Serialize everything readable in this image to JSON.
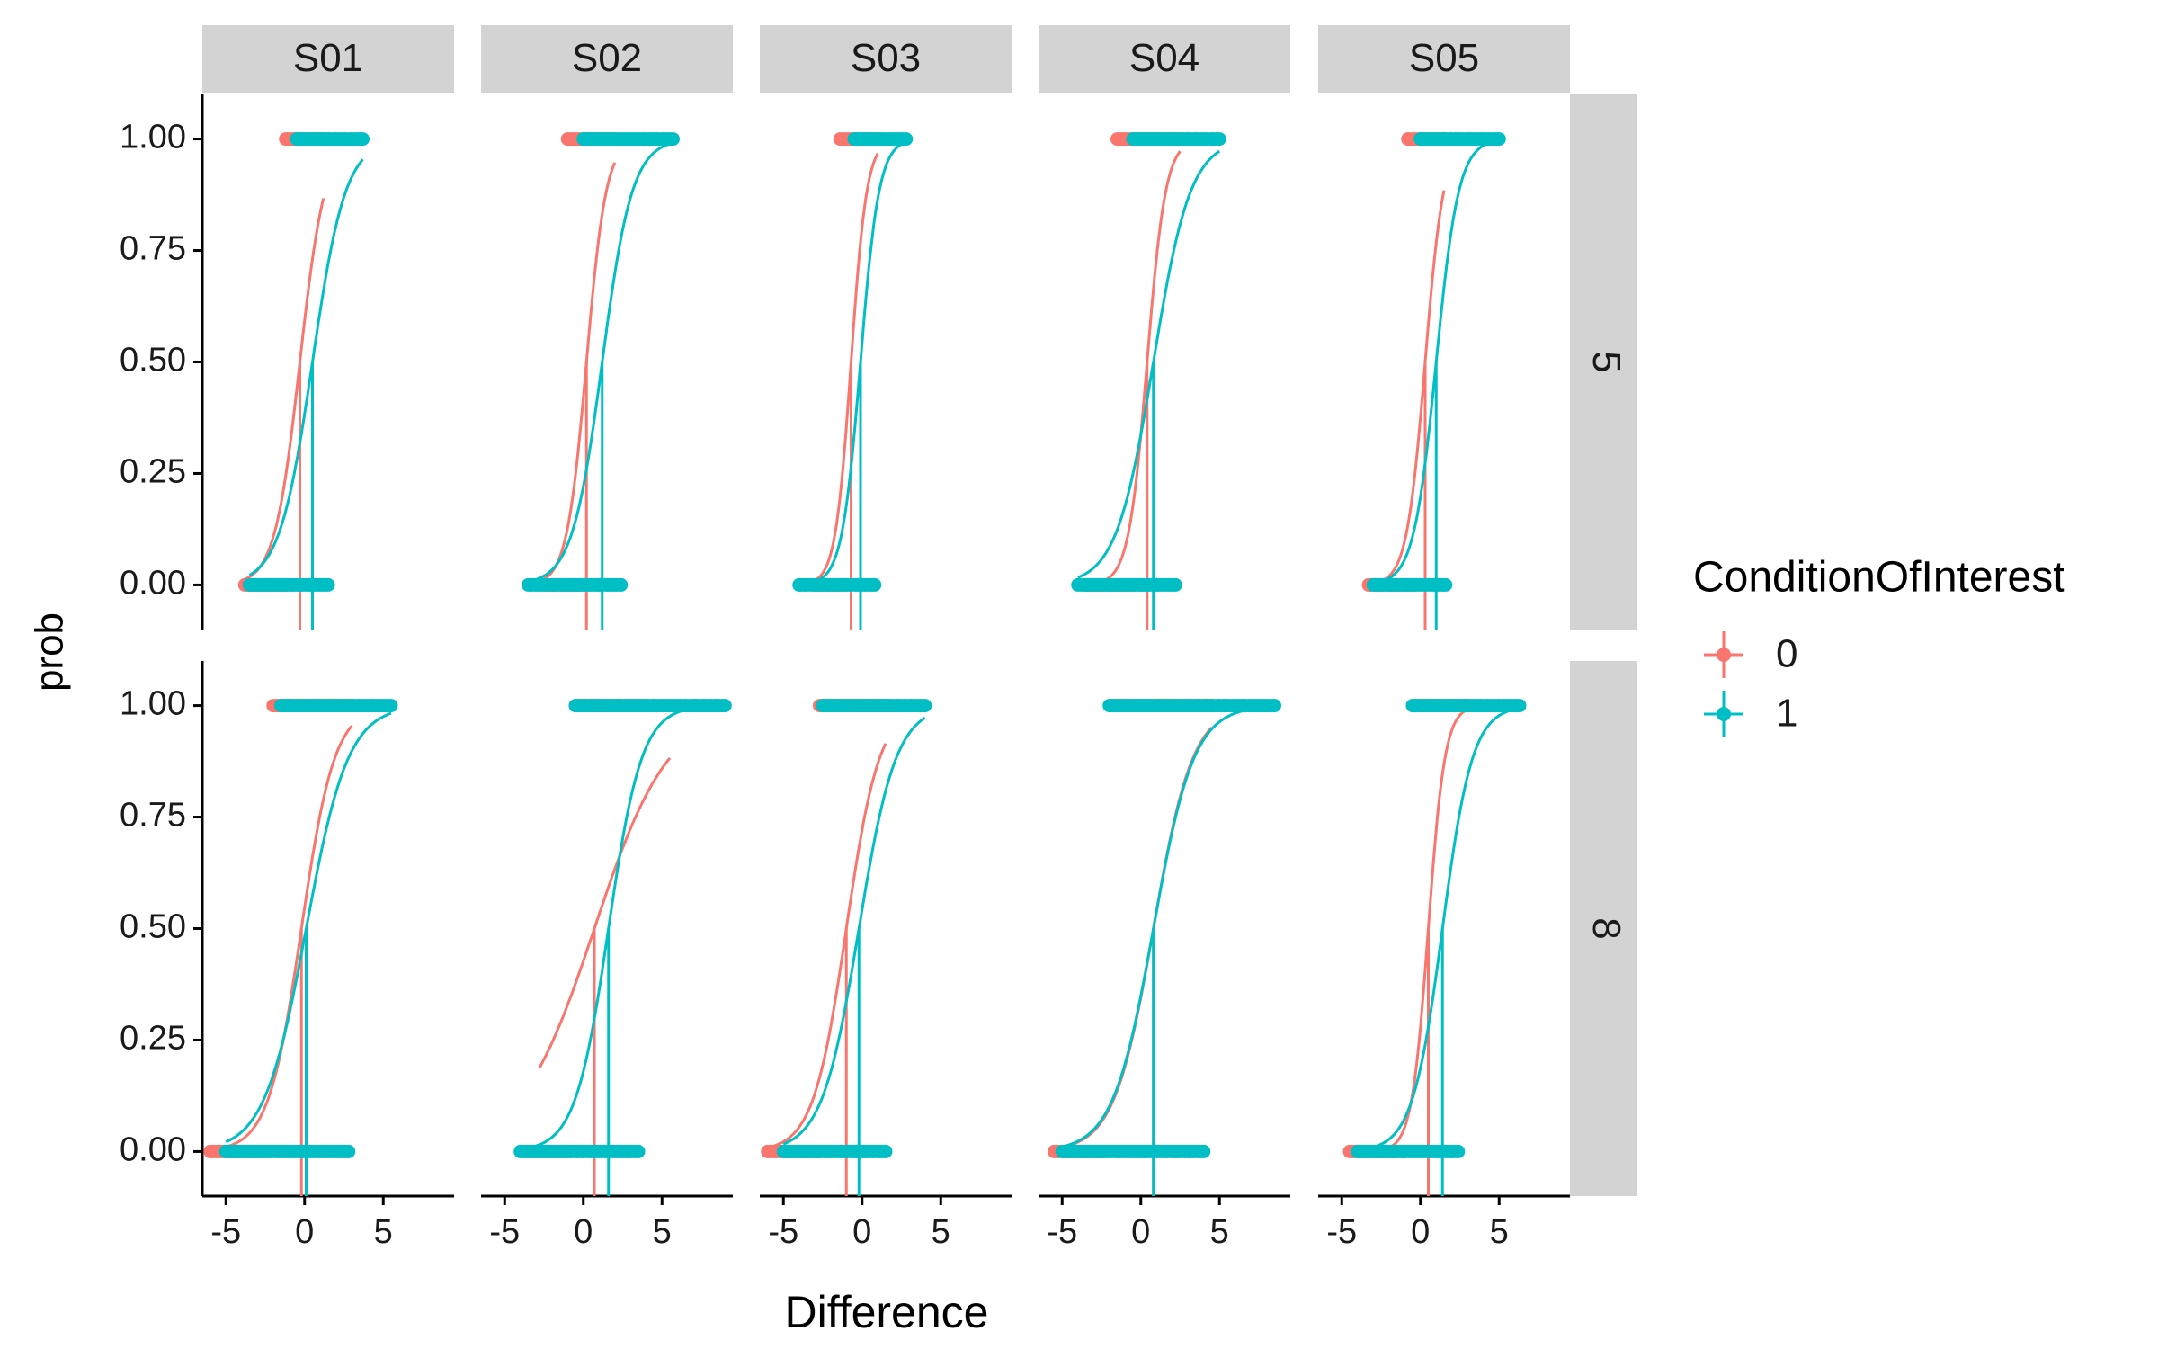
{
  "chart_data": {
    "type": "scatter",
    "title": "",
    "xlabel": "Difference",
    "ylabel": "prob",
    "xlim": [
      -6.5,
      9.5
    ],
    "ylim": [
      -0.1,
      1.1
    ],
    "x_ticks": [
      {
        "value": -5,
        "label": "-5"
      },
      {
        "value": 0,
        "label": "0"
      },
      {
        "value": 5,
        "label": "5"
      }
    ],
    "y_ticks": [
      {
        "value": 0,
        "label": "0.00"
      },
      {
        "value": 0.25,
        "label": "0.25"
      },
      {
        "value": 0.5,
        "label": "0.50"
      },
      {
        "value": 0.75,
        "label": "0.75"
      },
      {
        "value": 1,
        "label": "1.00"
      }
    ],
    "column_facets": [
      "S01",
      "S02",
      "S03",
      "S04",
      "S05"
    ],
    "row_facets": [
      "5",
      "8"
    ],
    "grid": false,
    "legend": {
      "title": "ConditionOfInterest",
      "position": "right",
      "entries": [
        {
          "label": "0",
          "color": "#F8766D"
        },
        {
          "label": "1",
          "color": "#00BFC4"
        }
      ]
    },
    "panels": [
      {
        "row": "5",
        "col": "S01",
        "series": [
          {
            "condition": "0",
            "pse": -0.3,
            "slope": 1.25,
            "zero_range": [
              -3.8,
              -1.2
            ],
            "one_range": [
              -1.2,
              1.2
            ]
          },
          {
            "condition": "1",
            "pse": 0.5,
            "slope": 0.95,
            "zero_range": [
              -3.5,
              1.5
            ],
            "one_range": [
              -0.5,
              3.7
            ]
          }
        ]
      },
      {
        "row": "5",
        "col": "S02",
        "series": [
          {
            "condition": "0",
            "pse": 0.2,
            "slope": 1.6,
            "zero_range": [
              -2.5,
              -0.2
            ],
            "one_range": [
              -1.0,
              2.0
            ]
          },
          {
            "condition": "1",
            "pse": 1.2,
            "slope": 1.05,
            "zero_range": [
              -3.5,
              2.4
            ],
            "one_range": [
              0.0,
              5.7
            ]
          }
        ]
      },
      {
        "row": "5",
        "col": "S03",
        "series": [
          {
            "condition": "0",
            "pse": -0.7,
            "slope": 2.0,
            "zero_range": [
              -3.0,
              -1.2
            ],
            "one_range": [
              -1.4,
              1.0
            ]
          },
          {
            "condition": "1",
            "pse": -0.1,
            "slope": 1.7,
            "zero_range": [
              -4.0,
              0.8
            ],
            "one_range": [
              -0.5,
              2.8
            ]
          }
        ]
      },
      {
        "row": "5",
        "col": "S04",
        "series": [
          {
            "condition": "0",
            "pse": 0.4,
            "slope": 1.7,
            "zero_range": [
              -3.5,
              -0.5
            ],
            "one_range": [
              -1.5,
              2.5
            ]
          },
          {
            "condition": "1",
            "pse": 0.8,
            "slope": 0.85,
            "zero_range": [
              -4.0,
              2.2
            ],
            "one_range": [
              -0.5,
              5.0
            ]
          }
        ]
      },
      {
        "row": "5",
        "col": "S05",
        "series": [
          {
            "condition": "0",
            "pse": 0.3,
            "slope": 1.7,
            "zero_range": [
              -3.3,
              -0.5
            ],
            "one_range": [
              -0.8,
              1.5
            ]
          },
          {
            "condition": "1",
            "pse": 1.0,
            "slope": 1.4,
            "zero_range": [
              -3.0,
              1.6
            ],
            "one_range": [
              0.0,
              5.0
            ]
          }
        ]
      },
      {
        "row": "8",
        "col": "S01",
        "series": [
          {
            "condition": "0",
            "pse": -0.2,
            "slope": 0.95,
            "zero_range": [
              -6.0,
              -2.5
            ],
            "one_range": [
              -2.0,
              3.0
            ]
          },
          {
            "condition": "1",
            "pse": 0.1,
            "slope": 0.75,
            "zero_range": [
              -5.0,
              2.8
            ],
            "one_range": [
              -1.5,
              5.5
            ]
          }
        ]
      },
      {
        "row": "8",
        "col": "S02",
        "series": [
          {
            "condition": "0",
            "pse": 0.7,
            "slope": 0.42,
            "zero_range": [
              -3.5,
              -1.0
            ],
            "one_range": [
              -0.5,
              4.0
            ],
            "curve_range": [
              -2.8,
              5.5
            ]
          },
          {
            "condition": "1",
            "pse": 1.6,
            "slope": 0.95,
            "zero_range": [
              -4.0,
              3.5
            ],
            "one_range": [
              -0.5,
              9.0
            ]
          }
        ]
      },
      {
        "row": "8",
        "col": "S03",
        "series": [
          {
            "condition": "0",
            "pse": -1.0,
            "slope": 0.95,
            "zero_range": [
              -6.0,
              -2.8
            ],
            "one_range": [
              -2.7,
              1.5
            ]
          },
          {
            "condition": "1",
            "pse": -0.2,
            "slope": 0.85,
            "zero_range": [
              -5.0,
              1.5
            ],
            "one_range": [
              -2.5,
              4.0
            ]
          }
        ]
      },
      {
        "row": "8",
        "col": "S04",
        "series": [
          {
            "condition": "0",
            "pse": 0.8,
            "slope": 0.8,
            "zero_range": [
              -5.5,
              -2.5
            ],
            "one_range": [
              -1.8,
              4.5
            ]
          },
          {
            "condition": "1",
            "pse": 0.8,
            "slope": 0.78,
            "zero_range": [
              -5.0,
              4.0
            ],
            "one_range": [
              -2.0,
              8.5
            ]
          }
        ]
      },
      {
        "row": "8",
        "col": "S05",
        "series": [
          {
            "condition": "0",
            "pse": 0.5,
            "slope": 1.9,
            "zero_range": [
              -4.5,
              -1.5
            ],
            "one_range": [
              -0.5,
              3.0
            ]
          },
          {
            "condition": "1",
            "pse": 1.4,
            "slope": 1.05,
            "zero_range": [
              -4.0,
              2.4
            ],
            "one_range": [
              -0.5,
              6.3
            ]
          }
        ]
      }
    ]
  }
}
